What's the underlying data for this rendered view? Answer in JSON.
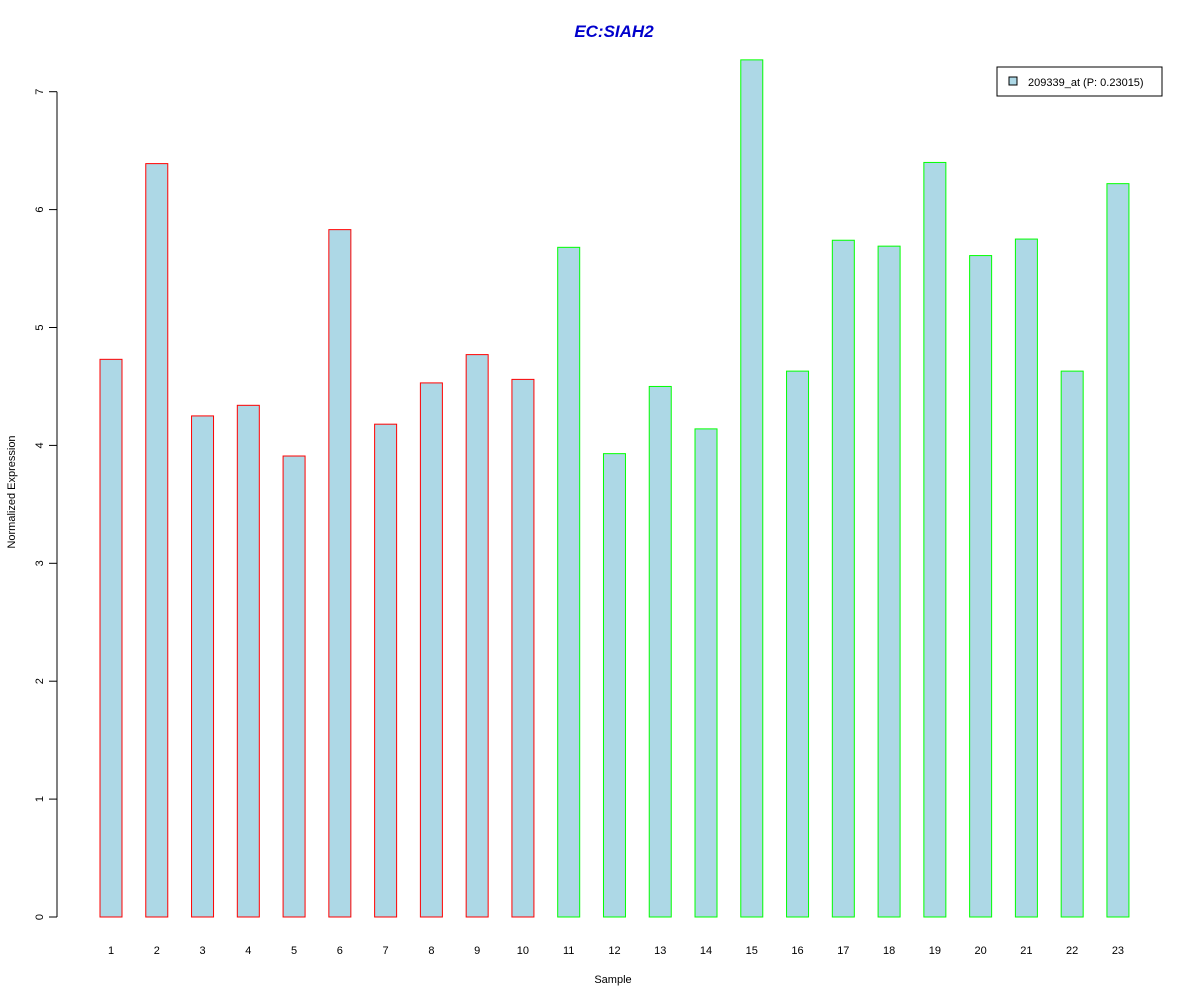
{
  "chart_data": {
    "type": "bar",
    "title": "EC:SIAH2",
    "xlabel": "Sample",
    "ylabel": "Normalized Expression",
    "categories": [
      "1",
      "2",
      "3",
      "4",
      "5",
      "6",
      "7",
      "8",
      "9",
      "10",
      "11",
      "12",
      "13",
      "14",
      "15",
      "16",
      "17",
      "18",
      "19",
      "20",
      "21",
      "22",
      "23"
    ],
    "series": [
      {
        "name": "209339_at (P: 0.23015)",
        "values": [
          4.73,
          6.39,
          4.25,
          4.34,
          3.91,
          5.83,
          4.18,
          4.53,
          4.77,
          4.56,
          5.68,
          3.93,
          4.5,
          4.14,
          7.27,
          4.63,
          5.74,
          5.69,
          6.4,
          5.61,
          5.75,
          4.63,
          6.22
        ],
        "fill": "#add8e6"
      }
    ],
    "group_border_colors": [
      "#ff0000",
      "#ff0000",
      "#ff0000",
      "#ff0000",
      "#ff0000",
      "#ff0000",
      "#ff0000",
      "#ff0000",
      "#ff0000",
      "#ff0000",
      "#00ff00",
      "#00ff00",
      "#00ff00",
      "#00ff00",
      "#00ff00",
      "#00ff00",
      "#00ff00",
      "#00ff00",
      "#00ff00",
      "#00ff00",
      "#00ff00",
      "#00ff00",
      "#00ff00"
    ],
    "yticks": [
      0,
      1,
      2,
      3,
      4,
      5,
      6,
      7
    ],
    "ylim": [
      0,
      7.27
    ],
    "grid": false,
    "legend_position": "top-right",
    "title_color": "#0000cc"
  }
}
